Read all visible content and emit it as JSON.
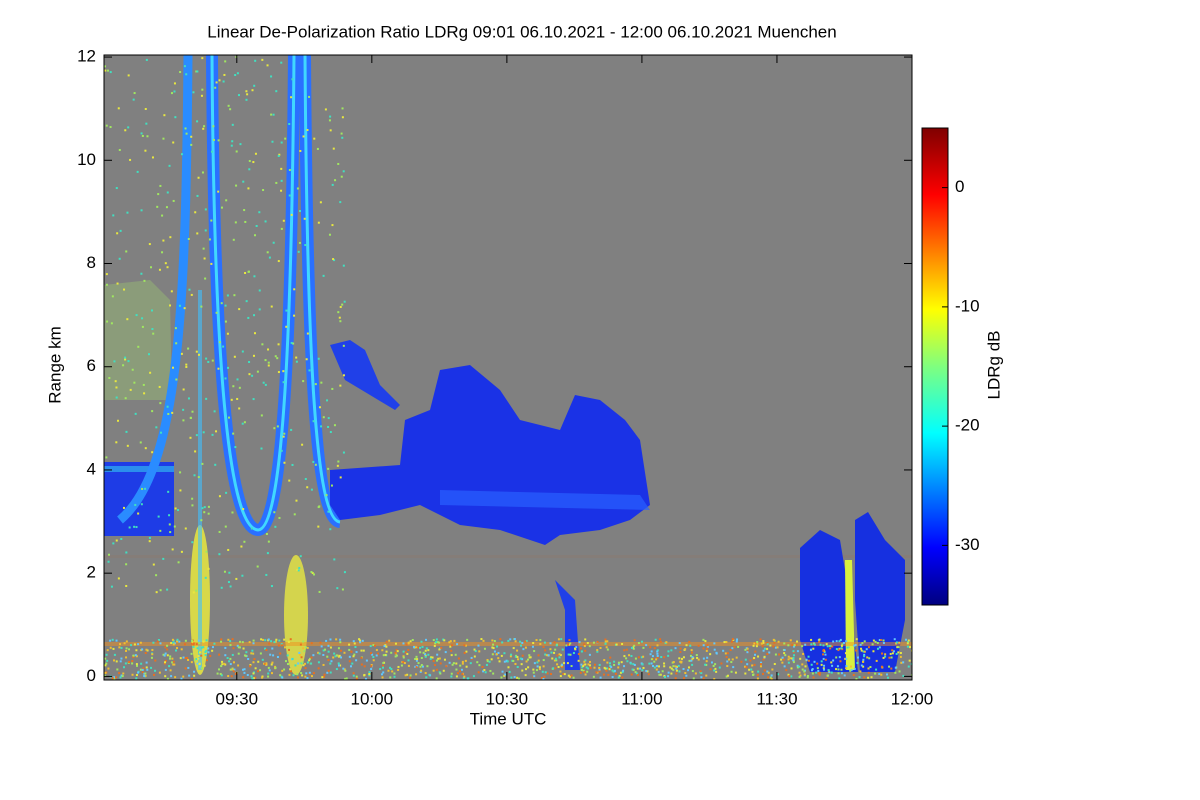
{
  "chart_data": {
    "type": "heatmap",
    "title": "Linear De-Polarization Ratio LDRg   09:01 06.10.2021 - 12:00 06.10.2021 Muenchen",
    "x_label": "Time UTC",
    "y_label": "Range km",
    "xlim": [
      540.5,
      720
    ],
    "xticks": [
      {
        "value": 570,
        "label": "09:30"
      },
      {
        "value": 600,
        "label": "10:00"
      },
      {
        "value": 630,
        "label": "10:30"
      },
      {
        "value": 660,
        "label": "11:00"
      },
      {
        "value": 690,
        "label": "11:30"
      },
      {
        "value": 720,
        "label": "12:00"
      }
    ],
    "ylim": [
      -0.07,
      12.04
    ],
    "yticks": [
      0,
      2,
      4,
      6,
      8,
      10,
      12
    ],
    "colorbar": {
      "label": "LDRg dB",
      "zlim": [
        -35,
        5
      ],
      "ticks": [
        0,
        -10,
        -20,
        -30
      ],
      "colormap": "jet"
    }
  }
}
